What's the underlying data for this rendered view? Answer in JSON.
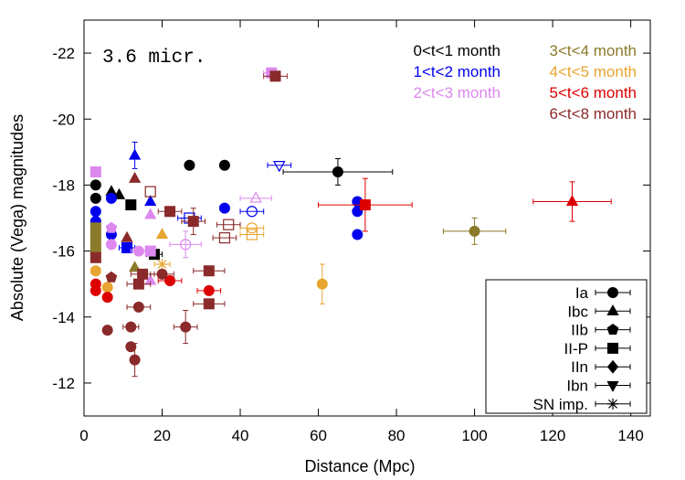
{
  "chart_data": {
    "type": "scatter",
    "title": "3.6 micr.",
    "xlabel": "Distance (Mpc)",
    "ylabel": "Absolute (Vega) magnitudes",
    "xlim": [
      0,
      145
    ],
    "ylim": [
      -11,
      -23
    ],
    "y_inverted": true,
    "xticks": [
      0,
      20,
      40,
      60,
      80,
      100,
      120,
      140
    ],
    "yticks": [
      -12,
      -14,
      -16,
      -18,
      -20,
      -22
    ],
    "time_legend": [
      {
        "label": "0<t<1 month",
        "color": "#000000"
      },
      {
        "label": "1<t<2 month",
        "color": "#0000ee"
      },
      {
        "label": "2<t<3 month",
        "color": "#dd88ee"
      },
      {
        "label": "3<t<4 month",
        "color": "#8b7a2a"
      },
      {
        "label": "4<t<5 month",
        "color": "#e8a530"
      },
      {
        "label": "5<t<6 month",
        "color": "#dd0000"
      },
      {
        "label": "6<t<8 month",
        "color": "#8b2a2a"
      }
    ],
    "type_legend": [
      {
        "label": "Ia",
        "marker": "circle"
      },
      {
        "label": "Ibc",
        "marker": "triangle-up"
      },
      {
        "label": "IIb",
        "marker": "pentagon"
      },
      {
        "label": "II-P",
        "marker": "square"
      },
      {
        "label": "IIn",
        "marker": "diamond"
      },
      {
        "label": "Ibn",
        "marker": "triangle-down"
      },
      {
        "label": "SN imp.",
        "marker": "star"
      }
    ],
    "points": [
      {
        "x": 3,
        "y": -18.0,
        "t": 0,
        "m": "circle"
      },
      {
        "x": 3,
        "y": -17.6,
        "t": 0,
        "m": "circle"
      },
      {
        "x": 7,
        "y": -17.8,
        "t": 0,
        "m": "triangle-up"
      },
      {
        "x": 9,
        "y": -17.7,
        "t": 0,
        "m": "triangle-up"
      },
      {
        "x": 12,
        "y": -17.4,
        "t": 0,
        "m": "square"
      },
      {
        "x": 27,
        "y": -18.6,
        "t": 0,
        "m": "circle"
      },
      {
        "x": 36,
        "y": -18.6,
        "t": 0,
        "m": "circle"
      },
      {
        "x": 65,
        "y": -18.4,
        "t": 0,
        "m": "circle",
        "xerr": 14,
        "yerr": 0.4
      },
      {
        "x": 18,
        "y": -15.9,
        "t": 0,
        "m": "square",
        "xerr": 2
      },
      {
        "x": 3,
        "y": -17.2,
        "t": 1,
        "m": "circle"
      },
      {
        "x": 3,
        "y": -16.9,
        "t": 1,
        "m": "circle"
      },
      {
        "x": 7,
        "y": -17.6,
        "t": 1,
        "m": "circle"
      },
      {
        "x": 7,
        "y": -16.5,
        "t": 1,
        "m": "circle"
      },
      {
        "x": 13,
        "y": -18.9,
        "t": 1,
        "m": "triangle-up",
        "yerr": 0.4
      },
      {
        "x": 17,
        "y": -17.5,
        "t": 1,
        "m": "triangle-up"
      },
      {
        "x": 11,
        "y": -16.1,
        "t": 1,
        "m": "square",
        "xerr": 2
      },
      {
        "x": 36,
        "y": -17.3,
        "t": 1,
        "m": "circle"
      },
      {
        "x": 27,
        "y": -17.0,
        "t": 1,
        "m": "square",
        "hollow": true,
        "xerr": 3
      },
      {
        "x": 43,
        "y": -17.2,
        "t": 1,
        "m": "circle",
        "hollow": true,
        "xerr": 3
      },
      {
        "x": 50,
        "y": -18.6,
        "t": 1,
        "m": "triangle-down",
        "hollow": true,
        "xerr": 3
      },
      {
        "x": 70,
        "y": -17.5,
        "t": 1,
        "m": "circle"
      },
      {
        "x": 70,
        "y": -17.2,
        "t": 1,
        "m": "circle"
      },
      {
        "x": 70,
        "y": -16.5,
        "t": 1,
        "m": "circle"
      },
      {
        "x": 3,
        "y": -18.4,
        "t": 2,
        "m": "square"
      },
      {
        "x": 7,
        "y": -16.7,
        "t": 2,
        "m": "pentagon"
      },
      {
        "x": 7,
        "y": -16.2,
        "t": 2,
        "m": "circle"
      },
      {
        "x": 14,
        "y": -16.0,
        "t": 2,
        "m": "circle",
        "xerr": 2
      },
      {
        "x": 17,
        "y": -17.1,
        "t": 2,
        "m": "triangle-up"
      },
      {
        "x": 17,
        "y": -16.0,
        "t": 2,
        "m": "square"
      },
      {
        "x": 17,
        "y": -15.1,
        "t": 2,
        "m": "triangle-up"
      },
      {
        "x": 26,
        "y": -16.2,
        "t": 2,
        "m": "circle",
        "hollow": true,
        "xerr": 4,
        "yerr": 0.4
      },
      {
        "x": 44,
        "y": -17.6,
        "t": 2,
        "m": "triangle-up",
        "hollow": true,
        "xerr": 4
      },
      {
        "x": 48,
        "y": -21.4,
        "t": 2,
        "m": "square",
        "xerr": 2
      },
      {
        "x": 3,
        "y": -16.7,
        "t": 3,
        "m": "square"
      },
      {
        "x": 3,
        "y": -16.4,
        "t": 3,
        "m": "square"
      },
      {
        "x": 3,
        "y": -16.1,
        "t": 3,
        "m": "square"
      },
      {
        "x": 13,
        "y": -15.5,
        "t": 3,
        "m": "triangle-up"
      },
      {
        "x": 100,
        "y": -16.6,
        "t": 3,
        "m": "circle",
        "xerr": 8,
        "yerr": 0.4
      },
      {
        "x": 3,
        "y": -15.4,
        "t": 4,
        "m": "circle"
      },
      {
        "x": 6,
        "y": -14.9,
        "t": 4,
        "m": "circle"
      },
      {
        "x": 20,
        "y": -16.5,
        "t": 4,
        "m": "triangle-up"
      },
      {
        "x": 20,
        "y": -15.6,
        "t": 4,
        "m": "star",
        "xerr": 2
      },
      {
        "x": 43,
        "y": -16.7,
        "t": 4,
        "m": "circle",
        "hollow": true,
        "xerr": 3
      },
      {
        "x": 43,
        "y": -16.5,
        "t": 4,
        "m": "square",
        "hollow": true,
        "xerr": 3
      },
      {
        "x": 61,
        "y": -15.0,
        "t": 4,
        "m": "circle",
        "yerr": 0.6
      },
      {
        "x": 3,
        "y": -15.0,
        "t": 5,
        "m": "circle"
      },
      {
        "x": 3,
        "y": -14.8,
        "t": 5,
        "m": "circle"
      },
      {
        "x": 6,
        "y": -14.6,
        "t": 5,
        "m": "circle"
      },
      {
        "x": 22,
        "y": -15.1,
        "t": 5,
        "m": "circle",
        "xerr": 3
      },
      {
        "x": 32,
        "y": -14.8,
        "t": 5,
        "m": "circle",
        "xerr": 3
      },
      {
        "x": 72,
        "y": -17.4,
        "t": 5,
        "m": "square",
        "xerr": 12,
        "yerr": 0.8
      },
      {
        "x": 125,
        "y": -17.5,
        "t": 5,
        "m": "triangle-up",
        "xerr": 10,
        "yerr": 0.6
      },
      {
        "x": 3,
        "y": -15.8,
        "t": 6,
        "m": "square",
        "xerr": 1
      },
      {
        "x": 6,
        "y": -13.6,
        "t": 6,
        "m": "circle"
      },
      {
        "x": 7,
        "y": -15.2,
        "t": 6,
        "m": "pentagon"
      },
      {
        "x": 12,
        "y": -13.7,
        "t": 6,
        "m": "circle",
        "xerr": 2
      },
      {
        "x": 12,
        "y": -13.1,
        "t": 6,
        "m": "circle"
      },
      {
        "x": 13,
        "y": -12.7,
        "t": 6,
        "m": "circle",
        "yerr": 0.5
      },
      {
        "x": 14,
        "y": -14.3,
        "t": 6,
        "m": "circle",
        "xerr": 3
      },
      {
        "x": 14,
        "y": -15.0,
        "t": 6,
        "m": "square",
        "xerr": 3
      },
      {
        "x": 15,
        "y": -15.3,
        "t": 6,
        "m": "square",
        "xerr": 3
      },
      {
        "x": 17,
        "y": -17.8,
        "t": 6,
        "m": "square",
        "hollow": true
      },
      {
        "x": 20,
        "y": -15.3,
        "t": 6,
        "m": "circle",
        "xerr": 3
      },
      {
        "x": 22,
        "y": -17.2,
        "t": 6,
        "m": "square",
        "xerr": 3
      },
      {
        "x": 26,
        "y": -13.7,
        "t": 6,
        "m": "circle",
        "xerr": 3,
        "yerr": 0.5
      },
      {
        "x": 28,
        "y": -16.9,
        "t": 6,
        "m": "square",
        "xerr": 3,
        "yerr": 0.4
      },
      {
        "x": 32,
        "y": -15.4,
        "t": 6,
        "m": "square",
        "xerr": 4
      },
      {
        "x": 32,
        "y": -14.4,
        "t": 6,
        "m": "square",
        "xerr": 4
      },
      {
        "x": 36,
        "y": -16.4,
        "t": 6,
        "m": "square",
        "hollow": true,
        "xerr": 3
      },
      {
        "x": 37,
        "y": -16.8,
        "t": 6,
        "m": "square",
        "hollow": true,
        "xerr": 3
      },
      {
        "x": 49,
        "y": -21.3,
        "t": 6,
        "m": "square",
        "xerr": 3
      },
      {
        "x": 11,
        "y": -16.4,
        "t": 6,
        "m": "triangle-up"
      },
      {
        "x": 13,
        "y": -18.2,
        "t": 6,
        "m": "triangle-up"
      }
    ]
  }
}
